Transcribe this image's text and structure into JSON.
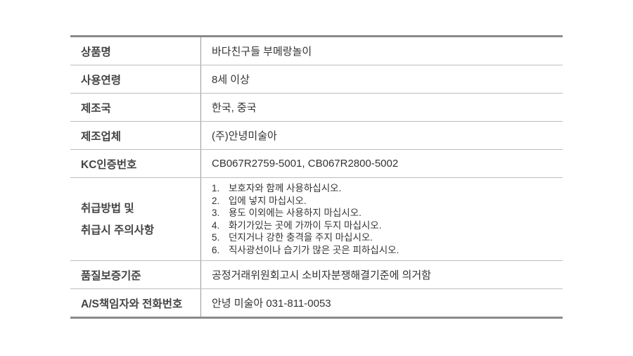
{
  "rows": [
    {
      "label": "상품명",
      "value": "바다친구들 부메랑놀이"
    },
    {
      "label": "사용연령",
      "value": "8세 이상"
    },
    {
      "label": "제조국",
      "value": "한국, 중국"
    },
    {
      "label": "제조업체",
      "value": "(주)안녕미술아"
    },
    {
      "label": "KC인증번호",
      "value": "CB067R2759-5001, CB067R2800-5002"
    },
    {
      "label_lines": [
        "취급방법 및",
        "취급시 주의사항"
      ],
      "items": [
        {
          "n": "1.",
          "text": "보호자와 함께 사용하십시오."
        },
        {
          "n": "2.",
          "text": "입에 넣지 마십시오."
        },
        {
          "n": "3.",
          "text": "용도 이외에는 사용하지 마십시오."
        },
        {
          "n": "4.",
          "text": "화기가있는 곳에 가까이 두지 마십시오."
        },
        {
          "n": "5.",
          "text": "던지거나 강한 충격을 주지 마십시오."
        },
        {
          "n": "6.",
          "text": "직사광선이나 습기가 많은 곳은 피하십시오."
        }
      ]
    },
    {
      "label": "품질보증기준",
      "value": "공정거래위원회고시 소비자분쟁해결기준에 의거함"
    },
    {
      "label": "A/S책임자와 전화번호",
      "value": "안녕 미술아 031-811-0053"
    }
  ]
}
